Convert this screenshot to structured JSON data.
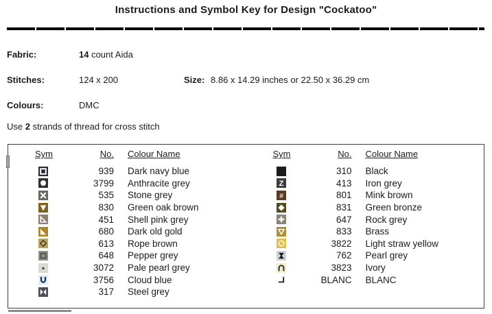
{
  "title": "Instructions and Symbol Key for Design \"Cockatoo\"",
  "info": {
    "fabric_label": "Fabric:",
    "fabric_value_bold": "14",
    "fabric_value_rest": " count Aida",
    "stitches_label": "Stitches:",
    "stitches_value": "124 x 200",
    "size_label": "Size:",
    "size_value": "8.86 x 14.29 inches or 22.50 x 36.29 cm",
    "colours_label": "Colours:",
    "colours_value": "DMC",
    "strands_prefix": "Use ",
    "strands_bold": "2",
    "strands_suffix": " strands of thread for cross stitch"
  },
  "key_table": {
    "headers": {
      "sym": "Sym",
      "no": "No.",
      "name": "Colour Name"
    },
    "left_rows": [
      {
        "no": "939",
        "name": "Dark navy blue",
        "symbol": {
          "shape": "square-outline",
          "bg": "#2a2a3c",
          "fg": "#ffffff"
        }
      },
      {
        "no": "3799",
        "name": "Anthracite grey",
        "symbol": {
          "shape": "circle-filled",
          "bg": "#313134",
          "fg": "#ffffff"
        }
      },
      {
        "no": "535",
        "name": "Stone grey",
        "symbol": {
          "shape": "x-cross",
          "bg": "#68675f",
          "fg": "#ffffff"
        }
      },
      {
        "no": "830",
        "name": "Green oak brown",
        "symbol": {
          "shape": "triangle-down-filled",
          "bg": "#7e6020",
          "fg": "#ffffff"
        }
      },
      {
        "no": "451",
        "name": "Shell pink grey",
        "symbol": {
          "shape": "corner-triangle-outline",
          "bg": "#8b7e72",
          "fg": "#ffffff"
        }
      },
      {
        "no": "680",
        "name": "Dark old gold",
        "symbol": {
          "shape": "corner-triangle-filled",
          "bg": "#b2822e",
          "fg": "#ffffff"
        }
      },
      {
        "no": "613",
        "name": "Rope brown",
        "symbol": {
          "shape": "diamond-outline",
          "bg": "#b7a466",
          "fg": "#43391f"
        }
      },
      {
        "no": "648",
        "name": "Pepper grey",
        "symbol": {
          "shape": "inner-square-outline",
          "bg": "#8f8e86",
          "fg": "#45443e"
        }
      },
      {
        "no": "3072",
        "name": "Pale pearl grey",
        "symbol": {
          "shape": "dot",
          "bg": "#d8dad1",
          "fg": "#222222"
        }
      },
      {
        "no": "3756",
        "name": "Cloud blue",
        "symbol": {
          "shape": "letter-u",
          "bg": "#e0eef8",
          "fg": "#1d2c50"
        }
      },
      {
        "no": "317",
        "name": "Steel grey",
        "symbol": {
          "shape": "bowtie",
          "bg": "#4f4f59",
          "fg": "#ffffff"
        }
      }
    ],
    "right_rows": [
      {
        "no": "310",
        "name": "Black",
        "symbol": {
          "shape": "solid",
          "bg": "#1c1c1c",
          "fg": "#1c1c1c"
        }
      },
      {
        "no": "413",
        "name": "Iron grey",
        "symbol": {
          "shape": "letter-z",
          "bg": "#3c3c3e",
          "fg": "#ffffff"
        }
      },
      {
        "no": "801",
        "name": "Mink brown",
        "symbol": {
          "shape": "hash",
          "bg": "#5d3a24",
          "fg": "#f2ded2"
        }
      },
      {
        "no": "831",
        "name": "Green bronze",
        "symbol": {
          "shape": "diamond-filled",
          "bg": "#57491e",
          "fg": "#ffffff"
        }
      },
      {
        "no": "647",
        "name": "Rock grey",
        "symbol": {
          "shape": "plus",
          "bg": "#8b8577",
          "fg": "#ffffff"
        }
      },
      {
        "no": "833",
        "name": "Brass",
        "symbol": {
          "shape": "triangle-down-outline",
          "bg": "#b18d36",
          "fg": "#ffffff"
        }
      },
      {
        "no": "3822",
        "name": "Light straw yellow",
        "symbol": {
          "shape": "circle-outline",
          "bg": "#dfbd4e",
          "fg": "#faf5dd"
        }
      },
      {
        "no": "762",
        "name": "Pearl grey",
        "symbol": {
          "shape": "hourglass",
          "bg": "#ced3da",
          "fg": "#1a1a1a"
        }
      },
      {
        "no": "3823",
        "name": "Ivory",
        "symbol": {
          "shape": "arch",
          "bg": "#f8eec6",
          "fg": "#232f4e"
        }
      },
      {
        "no": "BLANC",
        "name": "BLANC",
        "symbol": {
          "shape": "corner-bracket",
          "bg": "#ffffff",
          "fg": "#14142a"
        }
      }
    ]
  },
  "colors": {
    "text": "#1a1a1a",
    "rule": "#000000",
    "table_border": "#3c3c3c",
    "scrollbar": "#8a8a8a"
  }
}
